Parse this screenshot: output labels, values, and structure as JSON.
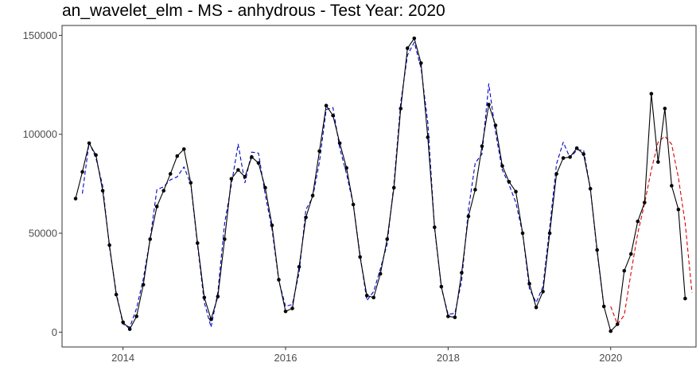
{
  "chart_data": {
    "type": "line",
    "title": "an_wavelet_elm - MS - anhydrous - Test Year: 2020",
    "xlabel": "",
    "ylabel": "",
    "xlim": [
      2013.25,
      2021.05
    ],
    "ylim": [
      -7500,
      155000
    ],
    "grid": false,
    "legend": "none",
    "x_ticks": [
      {
        "value": 2014,
        "label": "2014"
      },
      {
        "value": 2016,
        "label": "2016"
      },
      {
        "value": 2018,
        "label": "2018"
      },
      {
        "value": 2020,
        "label": "2020"
      }
    ],
    "y_ticks": [
      {
        "value": 0,
        "label": "0"
      },
      {
        "value": 50000,
        "label": "50000"
      },
      {
        "value": 100000,
        "label": "100000"
      },
      {
        "value": 150000,
        "label": "150000"
      }
    ],
    "series": [
      {
        "color": "#000000",
        "style": "solid",
        "markers": true,
        "x_start": 2013.4167,
        "x_step": 0.083333,
        "values": [
          67500,
          81000,
          95500,
          89500,
          71500,
          44000,
          19000,
          5000,
          1500,
          8000,
          24000,
          47000,
          63500,
          71500,
          80000,
          89000,
          92500,
          75500,
          45000,
          17500,
          6500,
          18000,
          47000,
          77500,
          82000,
          78500,
          88500,
          85500,
          73000,
          54000,
          26500,
          10500,
          12000,
          33000,
          58000,
          69000,
          91500,
          114500,
          109500,
          95500,
          83000,
          64500,
          38000,
          18500,
          17500,
          29500,
          47000,
          73000,
          113000,
          143500,
          148500,
          136000,
          98500,
          53000,
          23000,
          8000,
          7500,
          30000,
          58500,
          72000,
          94000,
          115000,
          104500,
          84000,
          76000,
          71000,
          50000,
          24500,
          12500,
          20500,
          50000,
          80000,
          88000,
          88500,
          93000,
          90000,
          72500,
          41500,
          13000,
          500,
          4000,
          31000,
          39500,
          56000,
          65500,
          120500,
          86000,
          113000,
          74000,
          62000,
          17000
        ]
      },
      {
        "color": "#0000cc",
        "style": "dashed",
        "markers": false,
        "x_start": 2013.5,
        "x_step": 0.083333,
        "values": [
          70000,
          96000,
          88000,
          74000,
          43000,
          20000,
          4000,
          2500,
          12000,
          27000,
          47000,
          72000,
          73500,
          77000,
          78500,
          83500,
          75000,
          44000,
          15000,
          2500,
          20000,
          55000,
          74500,
          95000,
          75500,
          91000,
          90500,
          69500,
          52000,
          26000,
          13000,
          14000,
          30000,
          62000,
          68000,
          86000,
          112500,
          113500,
          93000,
          80000,
          64500,
          39000,
          16000,
          20500,
          32000,
          44500,
          75000,
          116000,
          140000,
          146500,
          133500,
          106000,
          52500,
          22500,
          9000,
          9500,
          26000,
          62000,
          85500,
          90000,
          125500,
          101000,
          82000,
          74500,
          65500,
          50000,
          22000,
          15000,
          23000,
          53000,
          85000,
          96000,
          88000,
          92000,
          92000,
          72500,
          40500,
          13000
        ]
      },
      {
        "color": "#dd0000",
        "style": "dashed",
        "markers": false,
        "x_start": 2020.0,
        "x_step": 0.083333,
        "values": [
          13000,
          4000,
          8500,
          30000,
          50000,
          65000,
          82000,
          96000,
          99000,
          95000,
          78000,
          55000,
          20000
        ]
      }
    ]
  }
}
